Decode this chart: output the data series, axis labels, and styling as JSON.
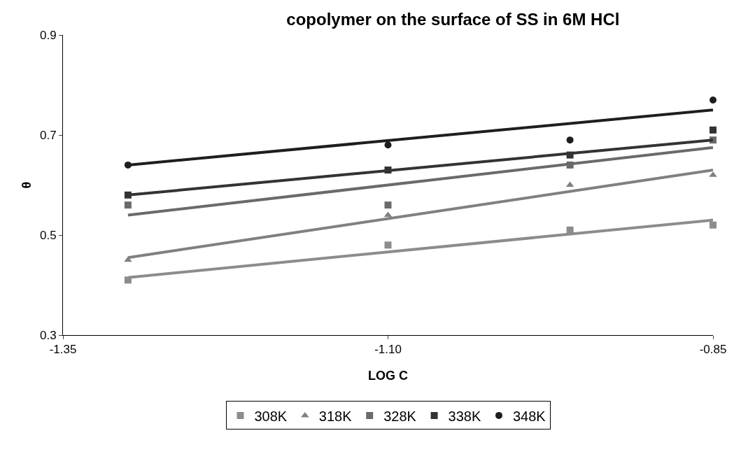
{
  "chart_data": {
    "type": "scatter",
    "title": "copolymer on the surface of SS in 6M HCl",
    "xlabel": "LOG C",
    "ylabel": "θ",
    "xlim": [
      -1.35,
      -0.85
    ],
    "xticks": [
      {
        "value": -1.35,
        "label": "-1.35"
      },
      {
        "value": -1.1,
        "label": "-1.10"
      },
      {
        "value": -0.85,
        "label": "-0.85"
      }
    ],
    "ylim": [
      0.3,
      0.9
    ],
    "yticks": [
      0.3,
      0.5,
      0.7,
      0.9
    ],
    "grid": false,
    "legend": "bottom",
    "series": [
      {
        "name": "308K",
        "marker": "square",
        "color": "#8c8c8c",
        "x": [
          -1.3,
          -1.1,
          -0.96,
          -0.85
        ],
        "values": [
          0.41,
          0.48,
          0.51,
          0.52
        ]
      },
      {
        "name": "318K",
        "marker": "triangle",
        "color": "#808080",
        "x": [
          -1.3,
          -1.1,
          -0.96,
          -0.85
        ],
        "values": [
          0.45,
          0.54,
          0.6,
          0.62
        ]
      },
      {
        "name": "328K",
        "marker": "square",
        "color": "#6a6a6a",
        "x": [
          -1.3,
          -1.1,
          -0.96,
          -0.85
        ],
        "values": [
          0.56,
          0.56,
          0.64,
          0.69
        ]
      },
      {
        "name": "338K",
        "marker": "square",
        "color": "#333333",
        "x": [
          -1.3,
          -1.1,
          -0.96,
          -0.85
        ],
        "values": [
          0.58,
          0.63,
          0.66,
          0.71
        ]
      },
      {
        "name": "348K",
        "marker": "circle",
        "color": "#1e1e1e",
        "x": [
          -1.3,
          -1.1,
          -0.96,
          -0.85
        ],
        "values": [
          0.64,
          0.68,
          0.69,
          0.77
        ]
      },
      {
        "type": "line",
        "marker": "none",
        "color": "#8c8c8c",
        "x": [
          -1.3,
          -0.85
        ],
        "values": [
          0.415,
          0.53
        ]
      },
      {
        "type": "line",
        "marker": "none",
        "color": "#808080",
        "x": [
          -1.3,
          -0.85
        ],
        "values": [
          0.455,
          0.63
        ]
      },
      {
        "type": "line",
        "marker": "none",
        "color": "#6a6a6a",
        "x": [
          -1.3,
          -0.85
        ],
        "values": [
          0.54,
          0.675
        ]
      },
      {
        "type": "line",
        "marker": "none",
        "color": "#333333",
        "x": [
          -1.3,
          -0.85
        ],
        "values": [
          0.58,
          0.69
        ]
      },
      {
        "type": "line",
        "marker": "none",
        "color": "#1e1e1e",
        "x": [
          -1.3,
          -0.85
        ],
        "values": [
          0.64,
          0.75
        ]
      }
    ]
  }
}
